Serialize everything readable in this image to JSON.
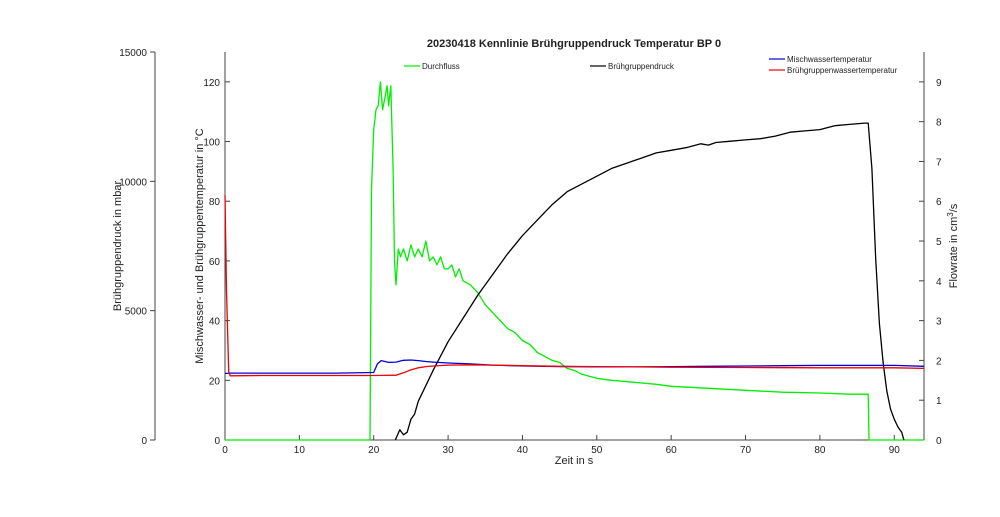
{
  "chart_data": {
    "type": "line",
    "title": "20230418 Kennlinie Brühgruppendruck Temperatur BP 0",
    "xlabel": "Zeit in s",
    "ylabel_left": "Mischwasser- und Brühgruppentemperatur in °C",
    "ylabel_right_prefix": "Flowrate in cm",
    "ylabel_right_sup": "3",
    "ylabel_right_suffix": "/s",
    "ylabel_pressure": "Brühgruppendruck in mbar",
    "xlim": [
      0,
      94
    ],
    "ylim_temperature": [
      0,
      130
    ],
    "ylim_flow": [
      0,
      9.75
    ],
    "ylim_pressure": [
      0,
      15000
    ],
    "xticks": [
      0,
      10,
      20,
      30,
      40,
      50,
      60,
      70,
      80,
      90
    ],
    "yticks_temperature": [
      0,
      20,
      40,
      60,
      80,
      100,
      120
    ],
    "yticks_flow": [
      0,
      1,
      2,
      3,
      4,
      5,
      6,
      7,
      8,
      9
    ],
    "yticks_pressure": [
      0,
      5000,
      10000,
      15000
    ],
    "colors": {
      "Durchfluss": "#00ee00",
      "Brühgruppendruck": "#000000",
      "Mischwassertemperatur": "#0000dd",
      "Brühgruppenwassertemperatur": "#ee0000"
    },
    "series": [
      {
        "name": "Durchfluss",
        "axis": "flow",
        "x": [
          0,
          19.5,
          19.7,
          20,
          20.3,
          20.6,
          20.9,
          21.2,
          21.5,
          21.8,
          22,
          22.3,
          22.6,
          22.8,
          23,
          23.3,
          23.6,
          24,
          24.5,
          25,
          25.5,
          26,
          26.5,
          27,
          27.5,
          28,
          28.5,
          29,
          29.5,
          30,
          30.5,
          31,
          31.5,
          32,
          33,
          34,
          35,
          36,
          37,
          38,
          39,
          40,
          41,
          42,
          43,
          44,
          45,
          46,
          47,
          48,
          50,
          52,
          55,
          58,
          60,
          65,
          70,
          75,
          80,
          84,
          86.5,
          86.6,
          94
        ],
        "y": [
          0,
          0,
          6.3,
          7.8,
          8.3,
          8.4,
          9.0,
          8.3,
          8.6,
          8.9,
          8.4,
          8.9,
          6.8,
          4.5,
          3.9,
          4.8,
          4.6,
          4.8,
          4.5,
          4.9,
          4.6,
          4.8,
          4.6,
          5.0,
          4.5,
          4.6,
          4.4,
          4.6,
          4.3,
          4.3,
          4.4,
          4.1,
          4.3,
          4.0,
          3.9,
          3.7,
          3.4,
          3.2,
          3.0,
          2.8,
          2.7,
          2.5,
          2.4,
          2.2,
          2.1,
          2.0,
          1.95,
          1.8,
          1.75,
          1.65,
          1.55,
          1.5,
          1.45,
          1.4,
          1.35,
          1.3,
          1.25,
          1.2,
          1.18,
          1.15,
          1.15,
          0,
          0
        ]
      },
      {
        "name": "Brühgruppendruck",
        "axis": "pressure",
        "x": [
          22.9,
          23.5,
          24,
          24.5,
          25,
          25.5,
          26,
          27,
          28,
          30,
          32,
          34,
          36,
          38,
          40,
          42,
          44,
          46,
          48,
          50,
          52,
          54,
          56,
          58,
          60,
          62,
          64,
          65,
          66,
          68,
          70,
          72,
          74,
          76,
          78,
          80,
          82,
          84,
          86,
          86.5,
          87,
          87.5,
          88,
          88.5,
          89,
          89.5,
          90,
          90.5,
          91,
          91.3
        ],
        "y": [
          0,
          400,
          200,
          300,
          800,
          1000,
          1500,
          2100,
          2700,
          3800,
          4700,
          5600,
          6400,
          7200,
          7900,
          8500,
          9100,
          9600,
          9900,
          10200,
          10500,
          10700,
          10900,
          11100,
          11200,
          11300,
          11450,
          11400,
          11500,
          11550,
          11600,
          11650,
          11750,
          11900,
          11950,
          12000,
          12150,
          12200,
          12250,
          12250,
          10500,
          7000,
          4500,
          3000,
          1900,
          1200,
          800,
          500,
          300,
          0
        ]
      },
      {
        "name": "Mischwassertemperatur",
        "axis": "temperature",
        "x": [
          0,
          0.3,
          0.6,
          5,
          10,
          15,
          20,
          20.5,
          21,
          21.5,
          22,
          23,
          24,
          25,
          26,
          27,
          28,
          30,
          33,
          36,
          40,
          45,
          50,
          55,
          60,
          65,
          70,
          75,
          80,
          85,
          90,
          94
        ],
        "y": [
          22.3,
          22.3,
          22.4,
          22.4,
          22.4,
          22.4,
          22.6,
          25.5,
          26.6,
          26.3,
          26.0,
          26.1,
          26.7,
          26.8,
          26.6,
          26.3,
          26.1,
          25.8,
          25.5,
          25.1,
          24.8,
          24.6,
          24.5,
          24.5,
          24.6,
          24.7,
          24.8,
          24.9,
          25.0,
          25.0,
          25.0,
          24.7
        ]
      },
      {
        "name": "Brühgruppenwassertemperatur",
        "axis": "temperature",
        "x": [
          0,
          0.2,
          0.5,
          0.7,
          5,
          10,
          15,
          20,
          23,
          24,
          25,
          26,
          27,
          28,
          30,
          33,
          36,
          40,
          45,
          50,
          55,
          60,
          70,
          80,
          85,
          90,
          94
        ],
        "y": [
          82,
          50,
          23,
          21.5,
          21.6,
          21.6,
          21.6,
          21.6,
          21.7,
          22.5,
          23.5,
          24.2,
          24.6,
          24.8,
          25.1,
          25.2,
          25.1,
          24.9,
          24.7,
          24.6,
          24.5,
          24.4,
          24.3,
          24.2,
          24.2,
          24.2,
          24.0
        ]
      }
    ]
  }
}
